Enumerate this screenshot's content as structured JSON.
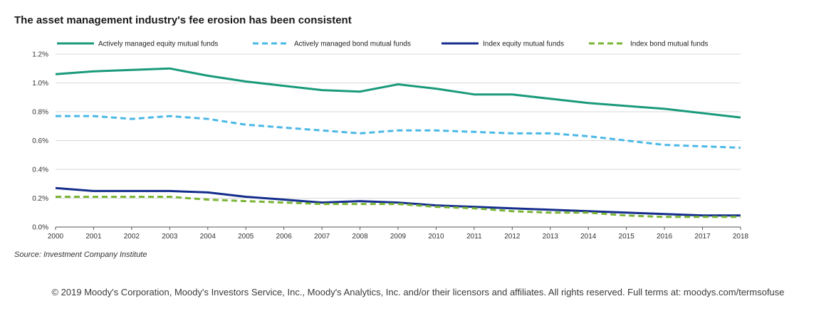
{
  "title": "The asset management industry's fee erosion has been consistent",
  "source": "Source: Investment Company Institute",
  "copyright": "© 2019 Moody's Corporation, Moody's Investors Service, Inc., Moody's Analytics, Inc. and/or their licensors and affiliates. All rights reserved. Full terms at: moodys.com/termsofuse",
  "chart_data": {
    "type": "line",
    "title": "The asset management industry's fee erosion has been consistent",
    "xlabel": "",
    "ylabel": "",
    "ylim": [
      0,
      1.2
    ],
    "yticks": [
      "0.0%",
      "0.2%",
      "0.4%",
      "0.6%",
      "0.8%",
      "1.0%",
      "1.2%"
    ],
    "ytick_values": [
      0,
      0.2,
      0.4,
      0.6,
      0.8,
      1.0,
      1.2
    ],
    "x": [
      "2000",
      "2001",
      "2002",
      "2003",
      "2004",
      "2005",
      "2006",
      "2007",
      "2008",
      "2009",
      "2010",
      "2011",
      "2012",
      "2013",
      "2014",
      "2015",
      "2016",
      "2017",
      "2018"
    ],
    "grid": true,
    "legend_position": "top",
    "series": [
      {
        "name": "Actively managed equity mutual funds",
        "color": "#1a9a7a",
        "style": "solid",
        "values": [
          1.06,
          1.08,
          1.09,
          1.1,
          1.05,
          1.01,
          0.98,
          0.95,
          0.94,
          0.99,
          0.96,
          0.92,
          0.92,
          0.89,
          0.86,
          0.84,
          0.82,
          0.79,
          0.76
        ]
      },
      {
        "name": "Actively managed bond mutual funds",
        "color": "#4ab8e6",
        "style": "dashed",
        "values": [
          0.77,
          0.77,
          0.75,
          0.77,
          0.75,
          0.71,
          0.69,
          0.67,
          0.65,
          0.67,
          0.67,
          0.66,
          0.65,
          0.65,
          0.63,
          0.6,
          0.57,
          0.56,
          0.55
        ]
      },
      {
        "name": "Index equity mutual funds",
        "color": "#142d8c",
        "style": "solid",
        "values": [
          0.27,
          0.25,
          0.25,
          0.25,
          0.24,
          0.21,
          0.19,
          0.17,
          0.18,
          0.17,
          0.15,
          0.14,
          0.13,
          0.12,
          0.11,
          0.1,
          0.09,
          0.08,
          0.08
        ]
      },
      {
        "name": "Index bond mutual funds",
        "color": "#7ab535",
        "style": "dashed",
        "values": [
          0.21,
          0.21,
          0.21,
          0.21,
          0.19,
          0.18,
          0.17,
          0.16,
          0.16,
          0.16,
          0.14,
          0.13,
          0.11,
          0.1,
          0.1,
          0.08,
          0.07,
          0.07,
          0.07
        ]
      }
    ]
  }
}
